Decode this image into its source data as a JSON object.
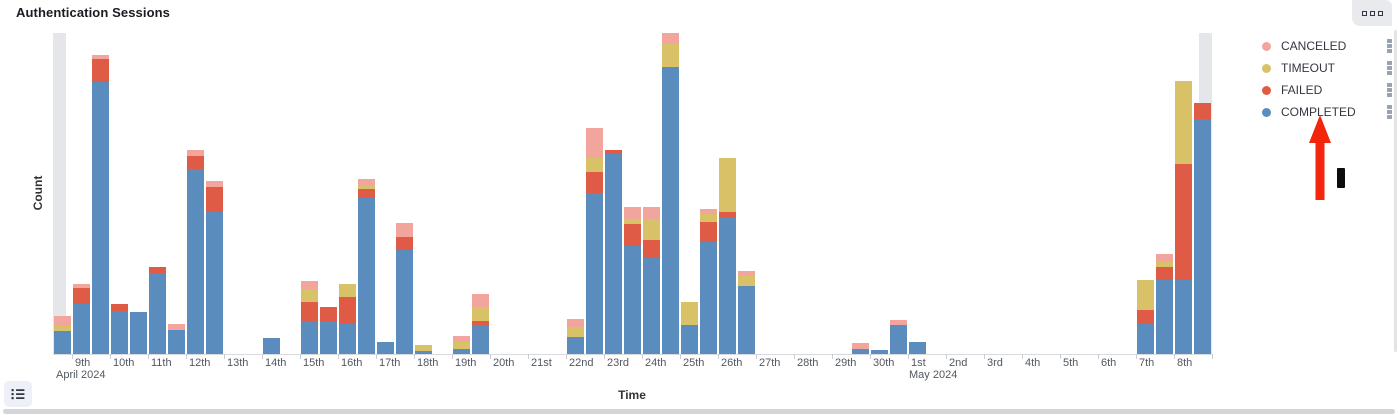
{
  "panel": {
    "title": "Authentication Sessions"
  },
  "axes": {
    "x_title": "Time",
    "y_title": "Count"
  },
  "legend": {
    "position": "right",
    "items": [
      {
        "label": "CANCELED",
        "color": "#F2A59C"
      },
      {
        "label": "TIMEOUT",
        "color": "#D9C168"
      },
      {
        "label": "FAILED",
        "color": "#E05B46"
      },
      {
        "label": "COMPLETED",
        "color": "#5A8DBE"
      }
    ]
  },
  "chart_data": {
    "type": "bar",
    "stacked": true,
    "title": "Authentication Sessions",
    "xlabel": "Time",
    "ylabel": "Count",
    "bucket_interval": "12h",
    "x_range": "April 8 2024 12:00 to May 8 2024 24:00",
    "ylim": [
      0,
      321
    ],
    "grid": false,
    "legend_position": "right",
    "endzones": {
      "left": true,
      "right": true,
      "color": "#E5E6E9"
    },
    "day_ticks": [
      {
        "label": "9th",
        "month": "April 2024"
      },
      {
        "label": "10th"
      },
      {
        "label": "11th"
      },
      {
        "label": "12th"
      },
      {
        "label": "13th"
      },
      {
        "label": "14th"
      },
      {
        "label": "15th"
      },
      {
        "label": "16th"
      },
      {
        "label": "17th"
      },
      {
        "label": "18th"
      },
      {
        "label": "19th"
      },
      {
        "label": "20th"
      },
      {
        "label": "21st"
      },
      {
        "label": "22nd"
      },
      {
        "label": "23rd"
      },
      {
        "label": "24th"
      },
      {
        "label": "25th"
      },
      {
        "label": "26th"
      },
      {
        "label": "27th"
      },
      {
        "label": "28th"
      },
      {
        "label": "29th"
      },
      {
        "label": "30th"
      },
      {
        "label": "1st",
        "month": "May 2024"
      },
      {
        "label": "2nd"
      },
      {
        "label": "3rd"
      },
      {
        "label": "4th"
      },
      {
        "label": "5th"
      },
      {
        "label": "6th"
      },
      {
        "label": "7th"
      },
      {
        "label": "8th"
      }
    ],
    "series": [
      {
        "name": "COMPLETED",
        "color": "#5A8DBE",
        "values": [
          23,
          50,
          272,
          43,
          42,
          81,
          24,
          185,
          142,
          0,
          0,
          16,
          0,
          33,
          33,
          30,
          156,
          12,
          104,
          3,
          0,
          5,
          29,
          0,
          0,
          0,
          0,
          17,
          161,
          200,
          108,
          96,
          287,
          29,
          112,
          137,
          68,
          0,
          0,
          0,
          0,
          0,
          5,
          4,
          29,
          12,
          0,
          0,
          0,
          0,
          0,
          0,
          0,
          0,
          0,
          0,
          0,
          30,
          74,
          74,
          235
        ]
      },
      {
        "name": "FAILED",
        "color": "#E05B46",
        "values": [
          0,
          16,
          23,
          7,
          0,
          6,
          0,
          13,
          25,
          0,
          0,
          0,
          0,
          19,
          14,
          27,
          9,
          0,
          13,
          0,
          0,
          0,
          4,
          0,
          0,
          0,
          0,
          0,
          21,
          4,
          22,
          18,
          0,
          0,
          20,
          5,
          0,
          0,
          0,
          0,
          0,
          0,
          0,
          0,
          0,
          0,
          0,
          0,
          0,
          0,
          0,
          0,
          0,
          0,
          0,
          0,
          0,
          14,
          13,
          116,
          16
        ]
      },
      {
        "name": "TIMEOUT",
        "color": "#D9C168",
        "values": [
          5,
          0,
          0,
          0,
          0,
          0,
          0,
          0,
          0,
          0,
          0,
          0,
          0,
          13,
          0,
          13,
          4,
          0,
          0,
          6,
          0,
          7,
          14,
          0,
          0,
          0,
          0,
          10,
          14,
          0,
          5,
          21,
          23,
          23,
          8,
          54,
          10,
          0,
          0,
          0,
          0,
          0,
          0,
          0,
          0,
          0,
          0,
          0,
          0,
          0,
          0,
          0,
          0,
          0,
          0,
          0,
          0,
          30,
          5,
          83,
          0
        ]
      },
      {
        "name": "CANCELED",
        "color": "#F2A59C",
        "values": [
          10,
          4,
          4,
          0,
          0,
          0,
          6,
          6,
          6,
          0,
          0,
          0,
          0,
          8,
          0,
          0,
          6,
          0,
          14,
          0,
          0,
          6,
          13,
          0,
          0,
          0,
          0,
          8,
          30,
          0,
          12,
          12,
          11,
          0,
          5,
          0,
          5,
          0,
          0,
          0,
          0,
          0,
          6,
          0,
          5,
          0,
          0,
          0,
          0,
          0,
          0,
          0,
          0,
          0,
          0,
          0,
          0,
          0,
          8,
          0,
          0
        ]
      }
    ]
  },
  "annotations": {
    "arrow_color": "#F3250C",
    "arrow_target": "COMPLETED legend item",
    "marker_color": "#0d0d0d"
  }
}
